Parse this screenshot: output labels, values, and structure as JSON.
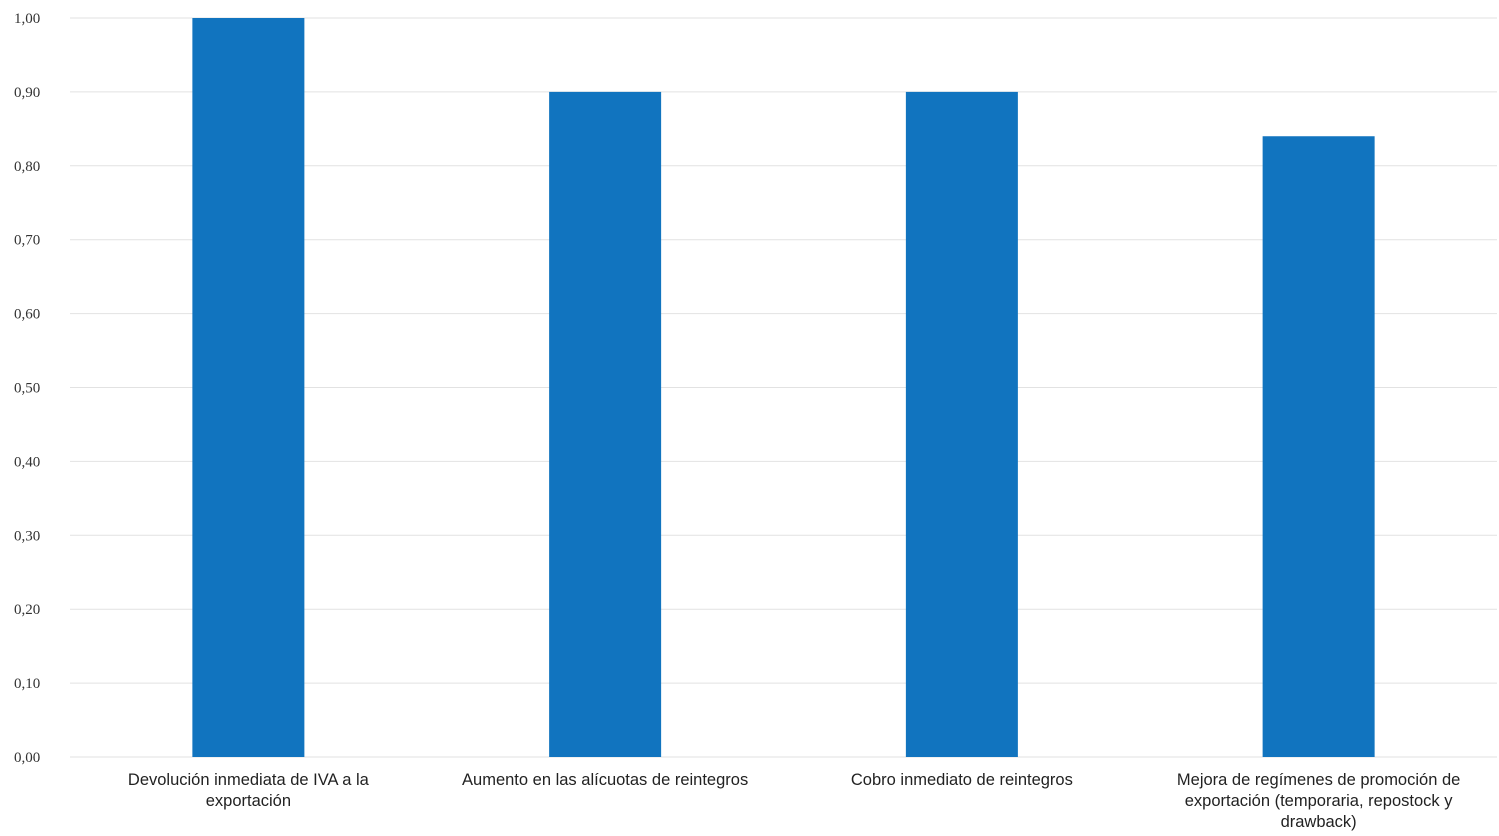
{
  "chart_data": {
    "type": "bar",
    "title": "",
    "xlabel": "",
    "ylabel": "",
    "categories": [
      "Devolución inmediata de IVA a la exportación",
      "Aumento en las alícuotas de reintegros",
      "Cobro inmediato de reintegros",
      "Mejora de regímenes de promoción de exportación (temporaria, repostock y drawback)"
    ],
    "values": [
      1.0,
      0.9,
      0.9,
      0.84
    ],
    "ylim": [
      0,
      1
    ],
    "yticks": [
      0.0,
      0.1,
      0.2,
      0.3,
      0.4,
      0.5,
      0.6,
      0.7,
      0.8,
      0.9,
      1.0
    ],
    "ytick_labels": [
      "0,00",
      "0,10",
      "0,20",
      "0,30",
      "0,40",
      "0,50",
      "0,60",
      "0,70",
      "0,80",
      "0,90",
      "1,00"
    ],
    "grid": true,
    "legend": "none",
    "bar_color": "#1174BF",
    "grid_color": "#E2E2E2"
  }
}
